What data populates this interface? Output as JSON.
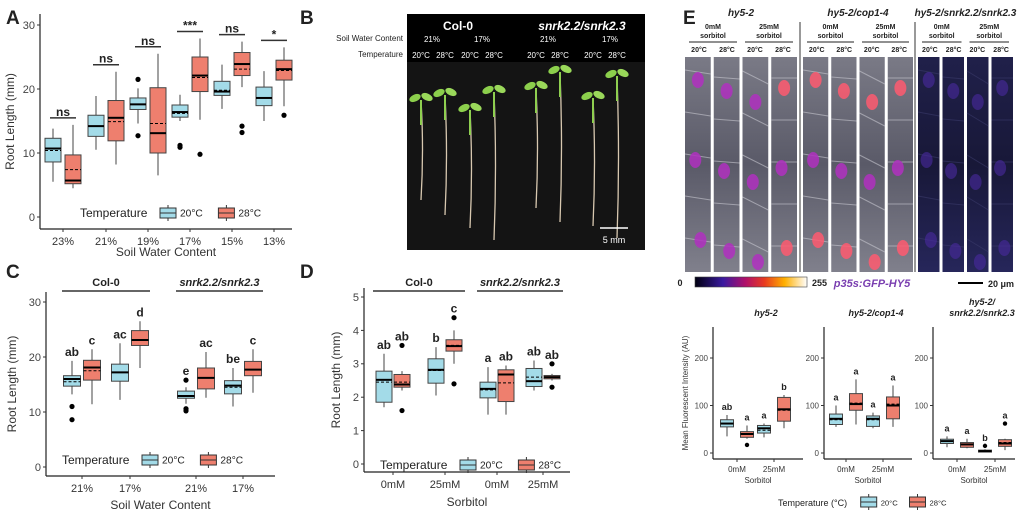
{
  "panel_labels": {
    "A": "A",
    "B": "B",
    "C": "C",
    "D": "D",
    "E": "E"
  },
  "colors": {
    "t20": "#a3dbe8",
    "t28": "#ee7f6e",
    "construct": "#7a3fb0"
  },
  "chart_data": [
    {
      "id": "A",
      "type": "box",
      "ylabel": "Root Length (mm)",
      "xlabel": "Soil Water Content",
      "ylim": [
        0,
        31
      ],
      "yticks": [
        "0",
        "10",
        "20",
        "30"
      ],
      "ytick_values": [
        0,
        10,
        20,
        30
      ],
      "categories": [
        "23%",
        "21%",
        "19%",
        "17%",
        "15%",
        "13%"
      ],
      "legend_title": "Temperature",
      "series": [
        "20°C",
        "28°C"
      ],
      "annotation_style": "significance",
      "annotations": [
        "ns",
        "ns",
        "ns",
        "***",
        "ns",
        "*"
      ],
      "boxes": [
        [
          {
            "lo": 5.5,
            "q1": 8.6,
            "med": 10.7,
            "q3": 12.3,
            "hi": 13.8,
            "mean": 10.4,
            "out": []
          },
          {
            "lo": 4.5,
            "q1": 5.2,
            "med": 5.7,
            "q3": 9.7,
            "hi": 14.4,
            "mean": 7.4,
            "out": []
          }
        ],
        [
          {
            "lo": 10.5,
            "q1": 12.6,
            "med": 14.2,
            "q3": 15.9,
            "hi": 18.9,
            "mean": 14.2,
            "out": []
          },
          {
            "lo": 8.2,
            "q1": 11.9,
            "med": 15.5,
            "q3": 18.2,
            "hi": 22.7,
            "mean": 14.9,
            "out": []
          }
        ],
        [
          {
            "lo": 14.6,
            "q1": 16.8,
            "med": 17.6,
            "q3": 18.6,
            "hi": 20.1,
            "mean": 17.6,
            "out": [
              21.5,
              12.7
            ]
          },
          {
            "lo": 6.5,
            "q1": 10.0,
            "med": 13.1,
            "q3": 20.2,
            "hi": 25.5,
            "mean": 14.6,
            "out": []
          }
        ],
        [
          {
            "lo": 15.0,
            "q1": 15.6,
            "med": 16.4,
            "q3": 17.5,
            "hi": 19.1,
            "mean": 16.2,
            "out": [
              11.2,
              10.9
            ]
          },
          {
            "lo": 15.2,
            "q1": 19.6,
            "med": 22.1,
            "q3": 25.0,
            "hi": 27.9,
            "mean": 21.8,
            "out": [
              9.8
            ]
          }
        ],
        [
          {
            "lo": 16.9,
            "q1": 19.0,
            "med": 19.6,
            "q3": 21.2,
            "hi": 23.8,
            "mean": 19.8,
            "out": []
          },
          {
            "lo": 20.3,
            "q1": 22.1,
            "med": 23.9,
            "q3": 25.7,
            "hi": 27.4,
            "mean": 23.1,
            "out": [
              14.2,
              13.2
            ]
          }
        ],
        [
          {
            "lo": 15.0,
            "q1": 17.4,
            "med": 18.6,
            "q3": 20.3,
            "hi": 22.8,
            "mean": 18.6,
            "out": []
          },
          {
            "lo": 17.3,
            "q1": 21.4,
            "med": 23.1,
            "q3": 24.5,
            "hi": 26.5,
            "mean": 22.9,
            "out": [
              15.9
            ]
          }
        ]
      ]
    },
    {
      "id": "C",
      "type": "box",
      "ylabel": "Root Length (mm)",
      "xlabel": "Soil Water Content",
      "ylim": [
        0,
        31
      ],
      "yticks": [
        "0",
        "10",
        "20",
        "30"
      ],
      "ytick_values": [
        0,
        10,
        20,
        30
      ],
      "categories": [
        "21%",
        "17%",
        "21%",
        "17%"
      ],
      "groups": [
        {
          "label": "Col-0",
          "italic": false,
          "cats": [
            0,
            1
          ]
        },
        {
          "label": "snrk2.2/snrk2.3",
          "italic": true,
          "cats": [
            2,
            3
          ]
        }
      ],
      "legend_title": "Temperature",
      "series": [
        "20°C",
        "28°C"
      ],
      "annotation_style": "letters",
      "annotations": [
        [
          "ab",
          "c"
        ],
        [
          "ac",
          "d"
        ],
        [
          "e",
          "ac"
        ],
        [
          "be",
          "c"
        ]
      ],
      "boxes": [
        [
          {
            "lo": 13.2,
            "q1": 14.7,
            "med": 16.0,
            "q3": 16.6,
            "hi": 19.3,
            "mean": 15.5,
            "out": [
              11.0,
              8.6
            ]
          },
          {
            "lo": 11.4,
            "q1": 15.8,
            "med": 18.1,
            "q3": 19.4,
            "hi": 21.4,
            "mean": 17.5,
            "out": []
          }
        ],
        [
          {
            "lo": 12.2,
            "q1": 15.6,
            "med": 17.2,
            "q3": 18.7,
            "hi": 22.5,
            "mean": 17.2,
            "out": []
          },
          {
            "lo": 18.0,
            "q1": 22.1,
            "med": 23.1,
            "q3": 24.8,
            "hi": 26.5,
            "mean": 23.0,
            "out": []
          }
        ],
        [
          {
            "lo": 11.5,
            "q1": 12.5,
            "med": 12.9,
            "q3": 13.8,
            "hi": 14.5,
            "mean": 13.0,
            "out": [
              15.8,
              10.6,
              10.2
            ]
          },
          {
            "lo": 12.6,
            "q1": 14.2,
            "med": 16.2,
            "q3": 18.0,
            "hi": 20.9,
            "mean": 16.2,
            "out": []
          }
        ],
        [
          {
            "lo": 11.0,
            "q1": 13.3,
            "med": 14.8,
            "q3": 15.7,
            "hi": 18.0,
            "mean": 14.5,
            "out": []
          },
          {
            "lo": 13.5,
            "q1": 16.6,
            "med": 17.7,
            "q3": 19.2,
            "hi": 21.4,
            "mean": 17.7,
            "out": []
          }
        ]
      ]
    },
    {
      "id": "D",
      "type": "box",
      "ylabel": "Root Length (mm)",
      "xlabel": "Sorbitol",
      "ylim": [
        0,
        5.2
      ],
      "yticks": [
        "0",
        "1",
        "2",
        "3",
        "4",
        "5"
      ],
      "ytick_values": [
        0,
        1,
        2,
        3,
        4,
        5
      ],
      "categories": [
        "0mM",
        "25mM",
        "0mM",
        "25mM"
      ],
      "groups": [
        {
          "label": "Col-0",
          "italic": false,
          "cats": [
            0,
            1
          ]
        },
        {
          "label": "snrk2.2/snrk2.3",
          "italic": true,
          "cats": [
            2,
            3
          ]
        }
      ],
      "legend_title": "Temperature",
      "series": [
        "20°C",
        "28°C"
      ],
      "annotation_style": "letters",
      "annotations": [
        [
          "ab",
          "ab"
        ],
        [
          "b",
          "c"
        ],
        [
          "a",
          "ab"
        ],
        [
          "ab",
          "ab"
        ]
      ],
      "boxes": [
        [
          {
            "lo": 1.7,
            "q1": 1.85,
            "med": 2.52,
            "q3": 2.78,
            "hi": 3.3,
            "mean": 2.45,
            "out": []
          },
          {
            "lo": 2.2,
            "q1": 2.3,
            "med": 2.38,
            "q3": 2.68,
            "hi": 2.78,
            "mean": 2.45,
            "out": [
              3.55,
              1.6
            ]
          }
        ],
        [
          {
            "lo": 2.05,
            "q1": 2.42,
            "med": 2.82,
            "q3": 3.15,
            "hi": 3.5,
            "mean": 2.8,
            "out": []
          },
          {
            "lo": 3.0,
            "q1": 3.38,
            "med": 3.53,
            "q3": 3.72,
            "hi": 4.0,
            "mean": 3.55,
            "out": [
              4.38,
              2.4
            ]
          }
        ],
        [
          {
            "lo": 1.48,
            "q1": 1.98,
            "med": 2.25,
            "q3": 2.45,
            "hi": 2.9,
            "mean": 2.22,
            "out": []
          },
          {
            "lo": 1.48,
            "q1": 1.87,
            "med": 2.68,
            "q3": 2.82,
            "hi": 2.95,
            "mean": 2.43,
            "out": []
          }
        ],
        [
          {
            "lo": 2.2,
            "q1": 2.32,
            "med": 2.48,
            "q3": 2.86,
            "hi": 3.1,
            "mean": 2.6,
            "out": []
          },
          {
            "lo": 2.5,
            "q1": 2.55,
            "med": 2.6,
            "q3": 2.65,
            "hi": 2.7,
            "mean": 2.6,
            "out": [
              3.0,
              2.3
            ]
          }
        ]
      ]
    },
    {
      "id": "E1",
      "type": "box",
      "title": [
        "hy5-2"
      ],
      "ylabel": "Mean Fluorescent Intensity (AU)",
      "xlabel": "Sorbitol",
      "ylim": [
        0,
        260
      ],
      "yticks": [
        "0",
        "100",
        "200"
      ],
      "ytick_values": [
        0,
        100,
        200
      ],
      "categories": [
        "0mM",
        "25mM"
      ],
      "series": [
        "20°C",
        "28°C"
      ],
      "annotation_style": "letters",
      "annotations": [
        [
          "ab",
          "a"
        ],
        [
          "a",
          "b"
        ]
      ],
      "boxes": [
        [
          {
            "lo": 35,
            "q1": 55,
            "med": 62,
            "q3": 70,
            "hi": 80,
            "mean": 62,
            "out": []
          },
          {
            "lo": 30,
            "q1": 33,
            "med": 40,
            "q3": 45,
            "hi": 58,
            "mean": 40,
            "out": [
              17
            ]
          }
        ],
        [
          {
            "lo": 33,
            "q1": 42,
            "med": 52,
            "q3": 58,
            "hi": 62,
            "mean": 48,
            "out": []
          },
          {
            "lo": 52,
            "q1": 67,
            "med": 92,
            "q3": 117,
            "hi": 122,
            "mean": 90,
            "out": []
          }
        ]
      ]
    },
    {
      "id": "E2",
      "type": "box",
      "title": [
        "hy5-2/cop1-4"
      ],
      "ylabel": "",
      "xlabel": "Sorbitol",
      "ylim": [
        0,
        260
      ],
      "yticks": [
        "0",
        "100",
        "200"
      ],
      "ytick_values": [
        0,
        100,
        200
      ],
      "categories": [
        "0mM",
        "25mM"
      ],
      "series": [
        "20°C",
        "28°C"
      ],
      "annotation_style": "letters",
      "annotations": [
        [
          "a",
          "a"
        ],
        [
          "a",
          "a"
        ]
      ],
      "boxes": [
        [
          {
            "lo": 55,
            "q1": 60,
            "med": 72,
            "q3": 82,
            "hi": 100,
            "mean": 70,
            "out": []
          },
          {
            "lo": 60,
            "q1": 90,
            "med": 103,
            "q3": 125,
            "hi": 155,
            "mean": 105,
            "out": []
          }
        ],
        [
          {
            "lo": 52,
            "q1": 56,
            "med": 72,
            "q3": 78,
            "hi": 85,
            "mean": 70,
            "out": []
          },
          {
            "lo": 55,
            "q1": 72,
            "med": 100,
            "q3": 118,
            "hi": 142,
            "mean": 103,
            "out": []
          }
        ]
      ]
    },
    {
      "id": "E3",
      "type": "box",
      "title": [
        "hy5-2/",
        "snrk2.2/snrk2.3"
      ],
      "ylabel": "",
      "xlabel": "Sorbitol",
      "ylim": [
        0,
        260
      ],
      "yticks": [
        "0",
        "100",
        "200"
      ],
      "ytick_values": [
        0,
        100,
        200
      ],
      "categories": [
        "0mM",
        "25mM"
      ],
      "series": [
        "20°C",
        "28°C"
      ],
      "annotation_style": "letters",
      "annotations": [
        [
          "a",
          "a"
        ],
        [
          "b",
          "a"
        ]
      ],
      "boxes": [
        [
          {
            "lo": 12,
            "q1": 20,
            "med": 25,
            "q3": 29,
            "hi": 35,
            "mean": 25,
            "out": []
          },
          {
            "lo": 10,
            "q1": 12,
            "med": 18,
            "q3": 22,
            "hi": 30,
            "mean": 18,
            "out": []
          }
        ],
        [
          {
            "lo": 1,
            "q1": 2,
            "med": 4,
            "q3": 6,
            "hi": 8,
            "mean": 4,
            "out": [
              15
            ]
          },
          {
            "lo": 6,
            "q1": 14,
            "med": 20,
            "q3": 28,
            "hi": 30,
            "mean": 22,
            "out": [
              62
            ]
          }
        ]
      ]
    }
  ],
  "panel_e_legend": {
    "title": "Temperature (°C)",
    "series": [
      "20°C",
      "28°C"
    ]
  },
  "panel_b": {
    "genotypes": [
      "Col-0",
      "snrk2.2/snrk2.3"
    ],
    "swc_label": "Soil Water Content",
    "swc_values": [
      "21%",
      "17%",
      "21%",
      "17%"
    ],
    "temp_label": "Temperature",
    "temps": [
      "20°C",
      "28°C",
      "20°C",
      "28°C",
      "20°C",
      "28°C",
      "20°C",
      "28°C"
    ],
    "scale_bar": "5 mm"
  },
  "panel_e_images": {
    "genotypes": [
      "hy5-2",
      "hy5-2/cop1-4",
      "hy5-2/snrk2.2/snrk2.3"
    ],
    "treatments": [
      [
        "0mM",
        "sorbitol"
      ],
      [
        "25mM",
        "sorbitol"
      ]
    ],
    "temps": [
      "20°C",
      "28°C"
    ],
    "colorbar_min": "0",
    "colorbar_max": "255",
    "construct": "p35s:GFP-HY5",
    "scale_bar": "20 μm"
  }
}
